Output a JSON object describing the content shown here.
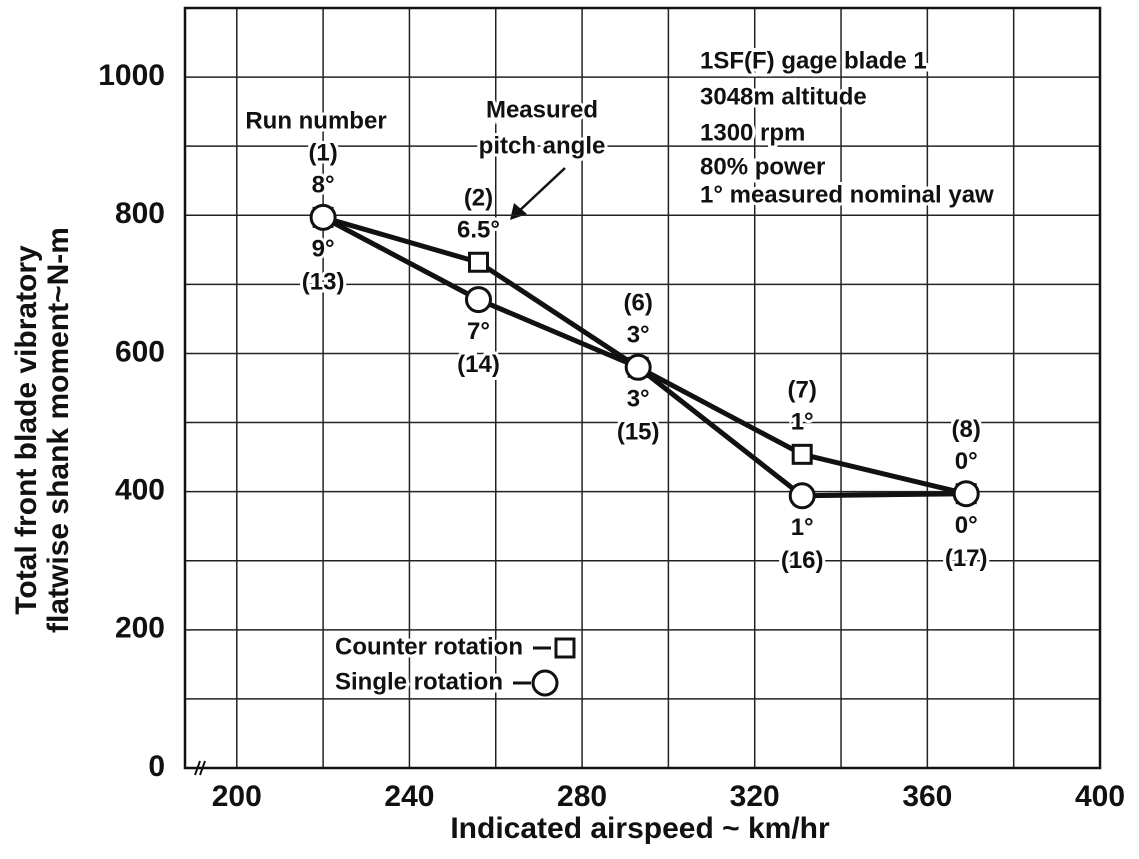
{
  "chart_data": {
    "type": "line",
    "xlabel": "Indicated airspeed ~ km/hr",
    "ylabel": [
      "Total front blade vibratory",
      "flatwise shank moment~N-m"
    ],
    "xlim": [
      188,
      400
    ],
    "ylim": [
      0,
      1100
    ],
    "xticks": [
      200,
      240,
      280,
      320,
      360,
      400
    ],
    "yticks": [
      0,
      200,
      400,
      600,
      800,
      1000
    ],
    "xgrid": [
      200,
      220,
      240,
      260,
      280,
      300,
      320,
      340,
      360,
      380,
      400
    ],
    "ygrid": [
      0,
      100,
      200,
      300,
      400,
      500,
      600,
      700,
      800,
      900,
      1000,
      1100
    ],
    "grid": true,
    "series": [
      {
        "name": "Counter rotation",
        "marker": "square",
        "color": "#111111",
        "x": [
          220,
          256,
          293,
          331,
          369
        ],
        "values": [
          797,
          732,
          580,
          454,
          397
        ],
        "run_labels": [
          "(1)",
          "(2)",
          "(6)",
          "(7)",
          "(8)"
        ],
        "pitch_labels": [
          "8°",
          "6.5°",
          "3°",
          "1°",
          "0°"
        ]
      },
      {
        "name": "Single rotation",
        "marker": "circle",
        "color": "#111111",
        "x": [
          220,
          256,
          293,
          331,
          369
        ],
        "values": [
          797,
          678,
          580,
          394,
          397
        ],
        "run_labels": [
          "(13)",
          "(14)",
          "(15)",
          "(16)",
          "(17)"
        ],
        "pitch_labels": [
          "9°",
          "7°",
          "3°",
          "1°",
          "0°"
        ]
      }
    ],
    "annotations": [
      "Run number",
      "Measured",
      "pitch angle"
    ],
    "notes": [
      "1SF(F) gage blade 1",
      "3048m altitude",
      "1300 rpm",
      "80% power",
      "1° measured nominal yaw"
    ]
  }
}
